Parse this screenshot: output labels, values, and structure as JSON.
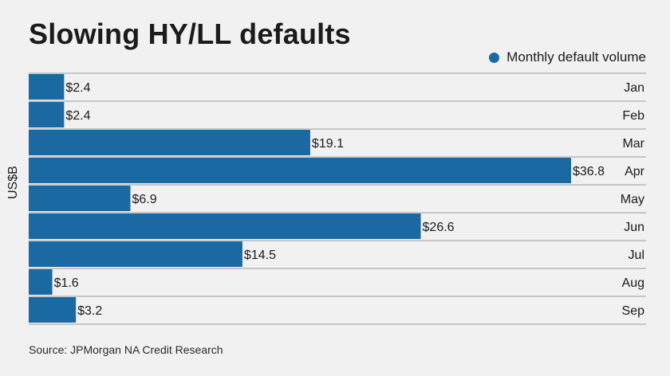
{
  "title": "Slowing HY/LL defaults",
  "source": "Source: JPMorgan NA Credit Research",
  "colors": {
    "bar": "#1b69a2",
    "gridline": "#9a9a9a",
    "background": "#f0f1f0"
  },
  "chart_data": {
    "type": "bar",
    "orientation": "horizontal",
    "title": "Slowing HY/LL defaults",
    "ylabel": "US$B",
    "categories": [
      "Jan",
      "Feb",
      "Mar",
      "Apr",
      "May",
      "Jun",
      "Jul",
      "Aug",
      "Sep"
    ],
    "series": [
      {
        "name": "Monthly default volume",
        "values": [
          2.4,
          2.4,
          19.1,
          36.8,
          6.9,
          26.6,
          14.5,
          1.6,
          3.2
        ],
        "labels": [
          "$2.4",
          "$2.4",
          "$19.1",
          "$36.8",
          "$6.9",
          "$26.6",
          "$14.5",
          "$1.6",
          "$3.2"
        ]
      }
    ],
    "xlim": [
      0,
      36.8
    ],
    "legend_position": "top-right",
    "grid": true
  }
}
